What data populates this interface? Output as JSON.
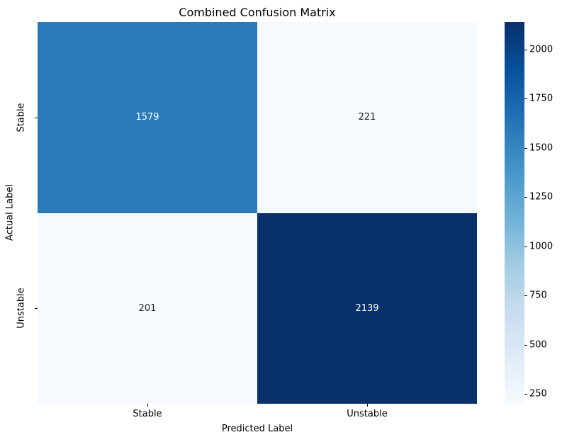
{
  "title": "Combined Confusion Matrix",
  "chart_data": {
    "type": "heatmap",
    "title": "Combined Confusion Matrix",
    "xlabel": "Predicted Label",
    "ylabel": "Actual Label",
    "x_categories": [
      "Stable",
      "Unstable"
    ],
    "y_categories": [
      "Stable",
      "Unstable"
    ],
    "values": [
      [
        1579,
        221
      ],
      [
        201,
        2139
      ]
    ],
    "colormap": "Blues",
    "vmin": 201,
    "vmax": 2139,
    "colorbar_ticks": [
      250,
      500,
      750,
      1000,
      1250,
      1500,
      1750,
      2000
    ],
    "cell_colors": [
      [
        "#2b7bba",
        "#f5fafe"
      ],
      [
        "#f6fafe",
        "#08306b"
      ]
    ],
    "cell_text_colors": [
      [
        "#ffffff",
        "#262626"
      ],
      [
        "#262626",
        "#ffffff"
      ]
    ],
    "colorbar_gradient_top_to_bottom": [
      "#08306b",
      "#08519c",
      "#2171b5",
      "#4292c6",
      "#6baed6",
      "#9ecae1",
      "#c6dbef",
      "#deebf7",
      "#f7fbff"
    ],
    "legend_position": "right-colorbar",
    "grid": false
  }
}
